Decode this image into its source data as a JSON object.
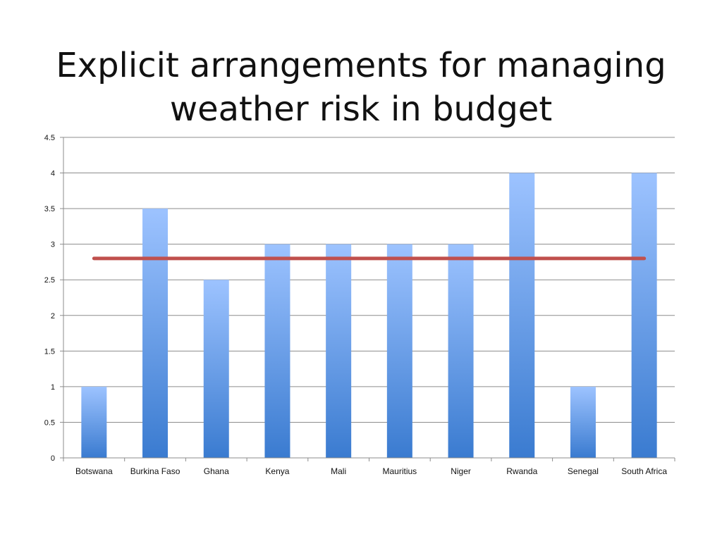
{
  "slide": {
    "title_lines": [
      "Explicit arrangements for managing",
      "weather risk in budget"
    ]
  },
  "colors": {
    "bar_top": "#9dc3ff",
    "bar_bottom": "#3a7bd0",
    "average_line": "#c0504d",
    "grid": "#8c8c8c",
    "axis": "#8c8c8c"
  },
  "chart_data": {
    "type": "bar",
    "title": "",
    "xlabel": "",
    "ylabel": "",
    "categories": [
      "Botswana",
      "Burkina Faso",
      "Ghana",
      "Kenya",
      "Mali",
      "Mauritius",
      "Niger",
      "Rwanda",
      "Senegal",
      "South Africa"
    ],
    "series": [
      {
        "values": [
          1,
          3.5,
          2.5,
          3,
          3,
          3,
          3,
          4,
          1,
          4
        ]
      }
    ],
    "reference_line": {
      "value": 2.8
    },
    "ylim": [
      0,
      4.5
    ],
    "yticks": [
      "0",
      "0.5",
      "1",
      "1.5",
      "2",
      "2.5",
      "3",
      "3.5",
      "4",
      "4.5"
    ],
    "grid": true,
    "legend": "none"
  }
}
